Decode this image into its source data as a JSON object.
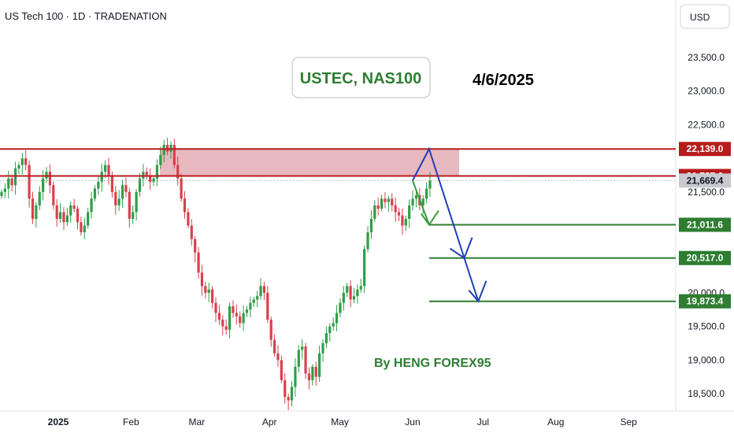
{
  "header": {
    "title": "US Tech 100 · 1D · TRADENATION",
    "currency": "USD"
  },
  "annotations": {
    "title": "USTEC, NAS100",
    "date": "4/6/2025",
    "author": "By HENG FOREX95"
  },
  "colors": {
    "up": "#2e9e47",
    "down": "#d9404c",
    "zone_fill": "#d98a95",
    "zone_line": "#b71c1c",
    "target_line": "#2e7d32",
    "arrow_green": "#3a9a3a",
    "arrow_blue": "#1f3fb5",
    "current_tag": "#c8cad0",
    "title_box_border": "#bdbdbd"
  },
  "chart_data": {
    "type": "candlestick",
    "y_axis": {
      "min": 18300,
      "max": 23800,
      "ticks": [
        23500,
        23000,
        22500,
        22000,
        21500,
        21000,
        20000,
        19500,
        19000,
        18500
      ],
      "tick_labels": [
        "23,500.0",
        "23,000.0",
        "22,500.0",
        "",
        "21,500.0",
        "",
        "20,000.0",
        "19,500.0",
        "19,000.0",
        "18,500.0"
      ]
    },
    "x_axis": {
      "labels": [
        "2025",
        "Feb",
        "Mar",
        "Apr",
        "May",
        "Jun",
        "Jul",
        "Aug",
        "Sep"
      ],
      "label_dates": [
        "2025-01-01",
        "2025-02-01",
        "2025-03-01",
        "2025-04-01",
        "2025-05-01",
        "2025-06-01",
        "2025-07-01",
        "2025-08-01",
        "2025-09-01"
      ]
    },
    "supply_zone": {
      "top": 22139.0,
      "bottom": 21737.0
    },
    "levels": [
      {
        "value": 22139.0,
        "label": "22,139.0",
        "kind": "resistance"
      },
      {
        "value": 21737.0,
        "label": "21,737.0",
        "kind": "resistance"
      },
      {
        "value": 21669.4,
        "label": "21,669.4",
        "kind": "current"
      },
      {
        "value": 21011.6,
        "label": "21,011.6",
        "kind": "target"
      },
      {
        "value": 20517.0,
        "label": "20,517.0",
        "kind": "target"
      },
      {
        "value": 19873.4,
        "label": "19,873.4",
        "kind": "target"
      }
    ],
    "candles_close": [
      21500,
      21550,
      21700,
      21600,
      21850,
      21900,
      22000,
      21900,
      21400,
      21100,
      21300,
      21500,
      21700,
      21800,
      21600,
      21300,
      21100,
      21200,
      21050,
      21150,
      21300,
      21250,
      21050,
      20900,
      21000,
      21200,
      21400,
      21550,
      21650,
      21800,
      21900,
      21750,
      21500,
      21300,
      21400,
      21600,
      21500,
      21100,
      21200,
      21500,
      21700,
      21800,
      21750,
      21650,
      21700,
      21900,
      22050,
      22200,
      22100,
      22200,
      21900,
      21700,
      21400,
      21200,
      21000,
      20800,
      20600,
      20300,
      20100,
      20000,
      20050,
      19850,
      19700,
      19600,
      19500,
      19450,
      19800,
      19700,
      19650,
      19550,
      19700,
      19750,
      19850,
      19900,
      19950,
      20100,
      20000,
      19600,
      19300,
      19100,
      19000,
      18700,
      18450,
      18400,
      18600,
      18900,
      19150,
      19200,
      18800,
      18700,
      18900,
      18750,
      19100,
      19250,
      19400,
      19500,
      19550,
      19700,
      19850,
      20000,
      20100,
      19900,
      19950,
      20050,
      20100,
      20650,
      20900,
      21100,
      21300,
      21250,
      21400,
      21350,
      21400,
      21300,
      21200,
      21150,
      21000,
      21100,
      21300,
      21400,
      21450,
      21300,
      21400,
      21550,
      21669.4
    ],
    "projection": {
      "green_arrow": [
        "2025-06-03",
        21669.4,
        "2025-06-06",
        21011.6
      ],
      "blue_path": [
        [
          "2025-06-03",
          21669.4
        ],
        [
          "2025-06-10",
          22139.0
        ],
        [
          "2025-06-25",
          20517.0
        ],
        [
          "2025-07-01",
          19873.4
        ]
      ]
    }
  }
}
